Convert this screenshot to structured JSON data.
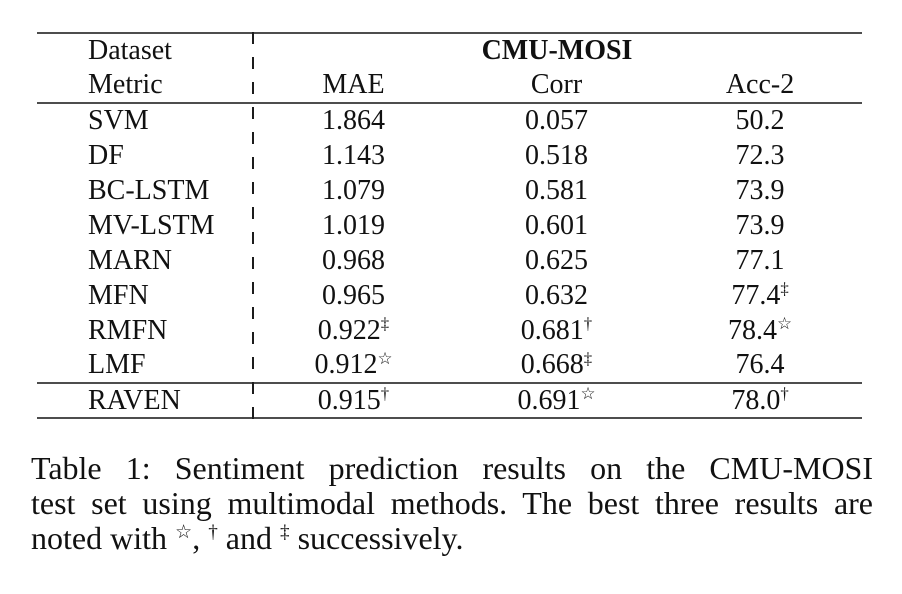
{
  "table": {
    "header": {
      "dataset_label": "Dataset",
      "metric_label": "Metric",
      "dataset_name": "CMU-MOSI",
      "metrics": [
        "MAE",
        "Corr",
        "Acc-2"
      ]
    },
    "rows": [
      {
        "method": "SVM",
        "mae": "1.864",
        "mae_sup": "",
        "corr": "0.057",
        "corr_sup": "",
        "acc": "50.2",
        "acc_sup": ""
      },
      {
        "method": "DF",
        "mae": "1.143",
        "mae_sup": "",
        "corr": "0.518",
        "corr_sup": "",
        "acc": "72.3",
        "acc_sup": ""
      },
      {
        "method": "BC-LSTM",
        "mae": "1.079",
        "mae_sup": "",
        "corr": "0.581",
        "corr_sup": "",
        "acc": "73.9",
        "acc_sup": ""
      },
      {
        "method": "MV-LSTM",
        "mae": "1.019",
        "mae_sup": "",
        "corr": "0.601",
        "corr_sup": "",
        "acc": "73.9",
        "acc_sup": ""
      },
      {
        "method": "MARN",
        "mae": "0.968",
        "mae_sup": "",
        "corr": "0.625",
        "corr_sup": "",
        "acc": "77.1",
        "acc_sup": ""
      },
      {
        "method": "MFN",
        "mae": "0.965",
        "mae_sup": "",
        "corr": "0.632",
        "corr_sup": "",
        "acc": "77.4",
        "acc_sup": "‡"
      },
      {
        "method": "RMFN",
        "mae": "0.922",
        "mae_sup": "‡",
        "corr": "0.681",
        "corr_sup": "†",
        "acc": "78.4",
        "acc_sup": "☆"
      },
      {
        "method": "LMF",
        "mae": "0.912",
        "mae_sup": "☆",
        "corr": "0.668",
        "corr_sup": "‡",
        "acc": "76.4",
        "acc_sup": ""
      },
      {
        "method": "RAVEN",
        "mae": "0.915",
        "mae_sup": "†",
        "corr": "0.691",
        "corr_sup": "☆",
        "acc": "78.0",
        "acc_sup": "†"
      }
    ]
  },
  "caption": {
    "line1": "Table 1: Sentiment prediction results on the CMU-MOSI",
    "line2": "test set using multimodal methods. The best three results are",
    "line3_prefix": "noted with ",
    "star_symbol": "☆",
    "line3_sep1": ", ",
    "dagger_symbol": "†",
    "line3_sep2": " and ",
    "ddagger_symbol": "‡",
    "line3_suffix": " successively."
  },
  "colors": {
    "text": "#111111",
    "rule": "#4d4d4d",
    "background": "#ffffff"
  }
}
